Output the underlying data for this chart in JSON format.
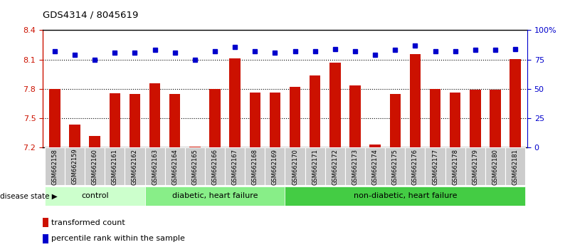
{
  "title": "GDS4314 / 8045619",
  "samples": [
    "GSM662158",
    "GSM662159",
    "GSM662160",
    "GSM662161",
    "GSM662162",
    "GSM662163",
    "GSM662164",
    "GSM662165",
    "GSM662166",
    "GSM662167",
    "GSM662168",
    "GSM662169",
    "GSM662170",
    "GSM662171",
    "GSM662172",
    "GSM662173",
    "GSM662174",
    "GSM662175",
    "GSM662176",
    "GSM662177",
    "GSM662178",
    "GSM662179",
    "GSM662180",
    "GSM662181"
  ],
  "bar_values": [
    7.801,
    7.435,
    7.315,
    7.755,
    7.745,
    7.855,
    7.745,
    7.21,
    7.8,
    8.115,
    7.76,
    7.76,
    7.82,
    7.94,
    8.065,
    7.835,
    7.23,
    7.745,
    8.155,
    7.795,
    7.76,
    7.79,
    7.79,
    8.105
  ],
  "percentile_values": [
    82,
    79,
    75,
    81,
    81,
    83,
    81,
    75,
    82,
    86,
    82,
    81,
    82,
    82,
    84,
    82,
    79,
    83,
    87,
    82,
    82,
    83,
    83,
    84
  ],
  "groups": [
    {
      "label": "control",
      "start": 0,
      "end": 5,
      "color": "#ccffcc"
    },
    {
      "label": "diabetic, heart failure",
      "start": 5,
      "end": 12,
      "color": "#88ee88"
    },
    {
      "label": "non-diabetic, heart failure",
      "start": 12,
      "end": 24,
      "color": "#44cc44"
    }
  ],
  "ylim_left": [
    7.2,
    8.4
  ],
  "ylim_right": [
    0,
    100
  ],
  "yticks_left": [
    7.2,
    7.5,
    7.8,
    8.1,
    8.4
  ],
  "yticks_right": [
    0,
    25,
    50,
    75,
    100
  ],
  "hlines": [
    8.1,
    7.8,
    7.5
  ],
  "bar_color": "#cc1100",
  "dot_color": "#0000cc",
  "bar_width": 0.55,
  "label_bar": "transformed count",
  "label_dot": "percentile rank within the sample",
  "disease_state_label": "disease state",
  "left_axis_color": "#cc1100",
  "right_axis_color": "#0000cc"
}
